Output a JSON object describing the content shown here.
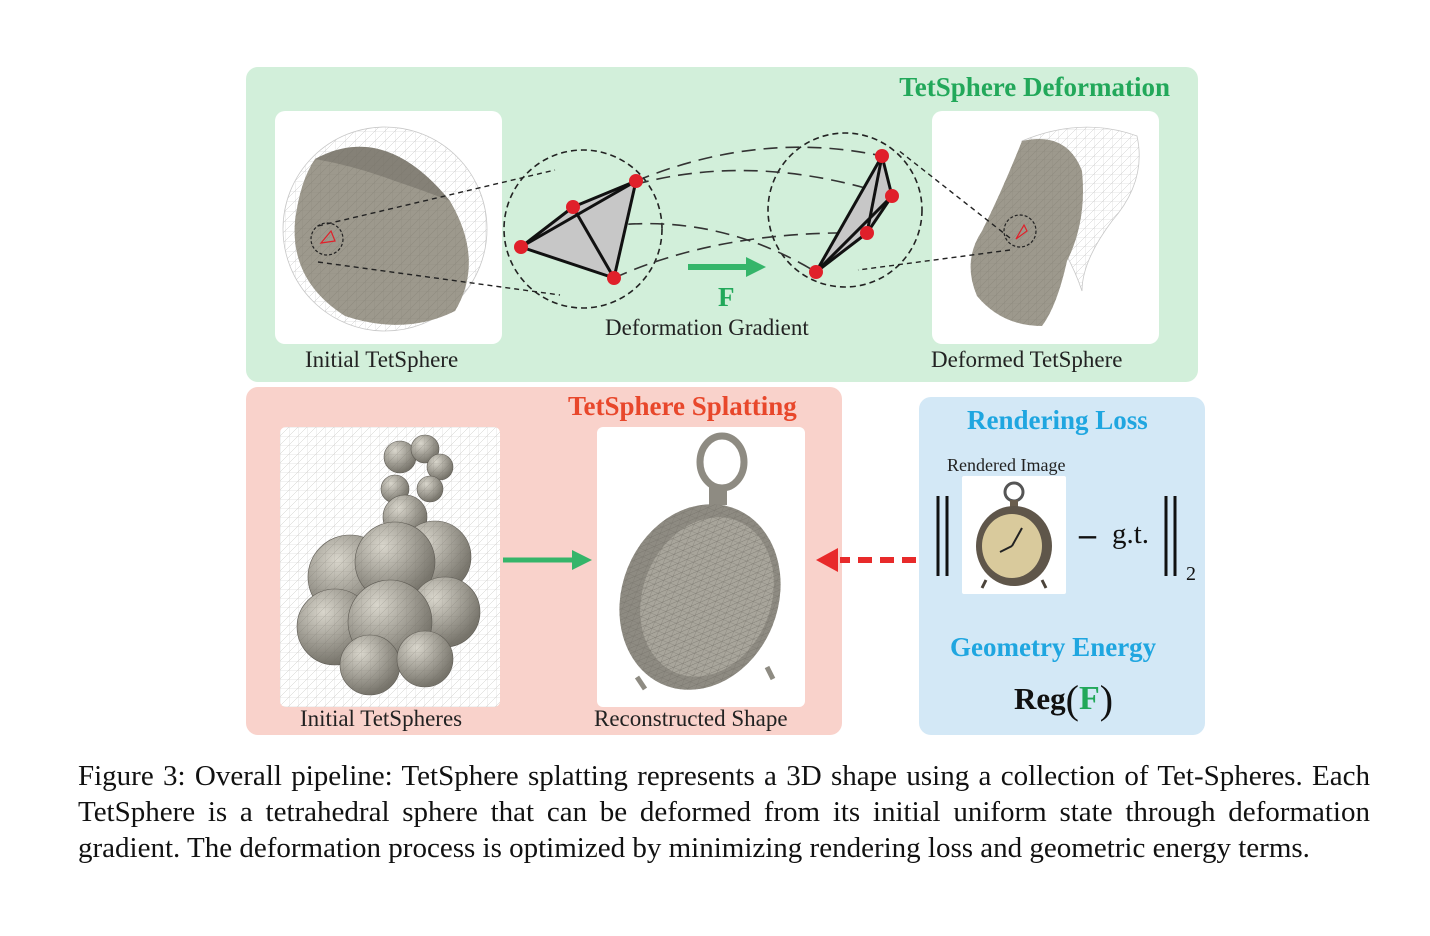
{
  "deformation_panel": {
    "title": "TetSphere Deformation",
    "initial_label": "Initial TetSphere",
    "deformed_label": "Deformed TetSphere",
    "symbol": "F",
    "gradient_label": "Deformation Gradient"
  },
  "splatting_panel": {
    "title": "TetSphere Splatting",
    "initial_label": "Initial TetSpheres",
    "reconstructed_label": "Reconstructed Shape"
  },
  "loss_panel": {
    "rendering_title": "Rendering Loss",
    "rendered_image_label": "Rendered Image",
    "minus": "–",
    "gt": "g.t.",
    "norm_subscript": "2",
    "geometry_title": "Geometry Energy",
    "reg": "Reg",
    "reg_arg": "F"
  },
  "colors": {
    "green_panel": "#d2efda",
    "red_panel": "#f9d2cb",
    "blue_panel": "#d3e8f6",
    "green_text": "#22a85a",
    "red_text": "#e8472b",
    "blue_text": "#1fa6e0",
    "arrow_green": "#35b56a",
    "arrow_red": "#e82a2a",
    "vertex_red": "#e0202a"
  },
  "figure_caption": "Figure 3: Overall pipeline: TetSphere splatting represents a 3D shape using a collection of Tet-Spheres. Each TetSphere is a tetrahedral sphere that can be deformed from its initial uniform state through deformation gradient. The deformation process is optimized by minimizing rendering loss and geometric energy terms."
}
